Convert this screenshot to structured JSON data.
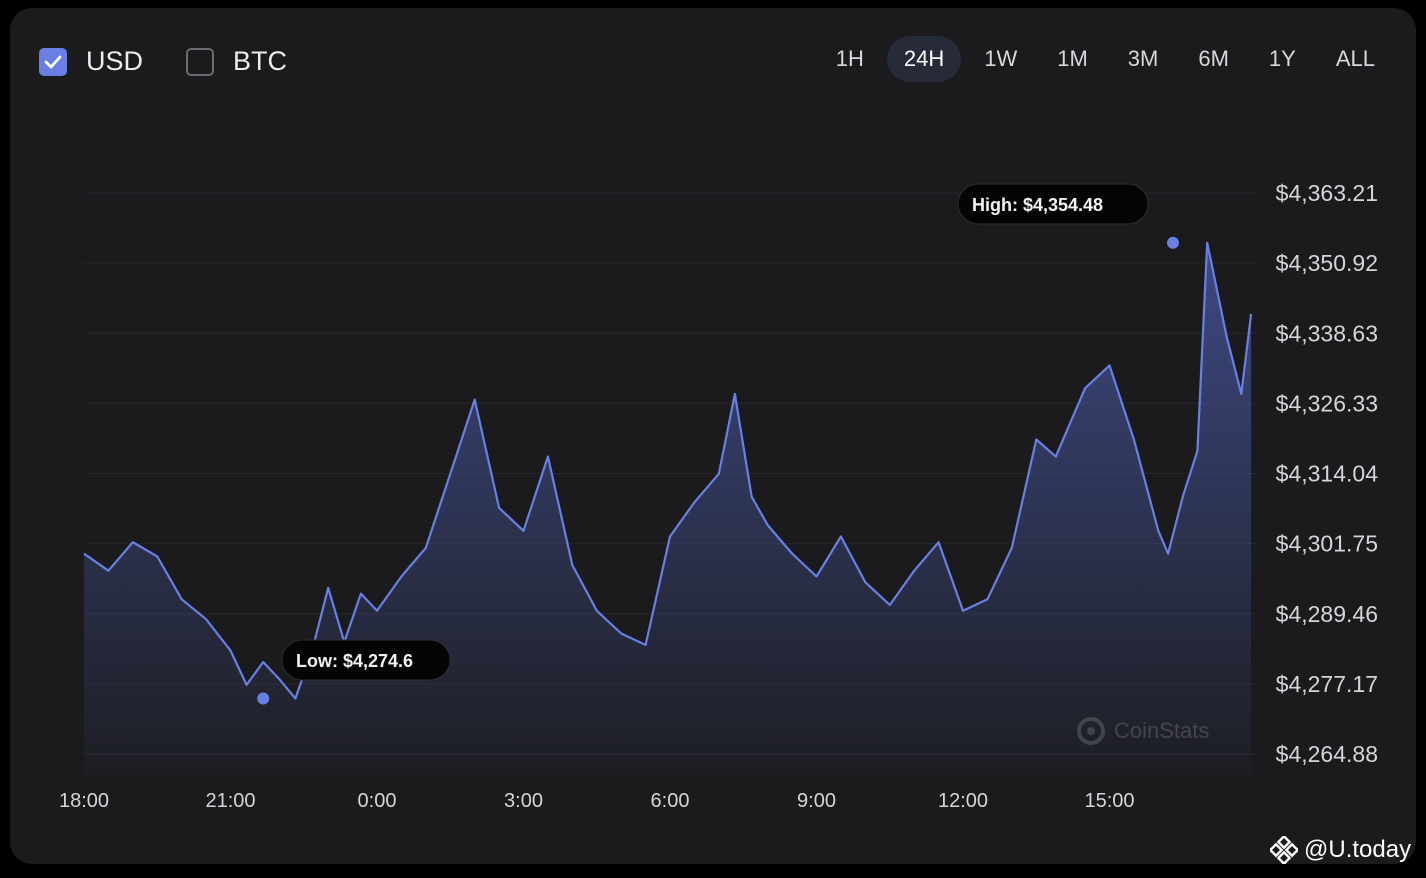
{
  "toolbar": {
    "currencies": [
      {
        "label": "USD",
        "checked": true
      },
      {
        "label": "BTC",
        "checked": false
      }
    ],
    "ranges": [
      "1H",
      "24H",
      "1W",
      "1M",
      "3M",
      "6M",
      "1Y",
      "ALL"
    ],
    "active_range": "24H"
  },
  "watermark": {
    "text": "CoinStats"
  },
  "brand": {
    "text": "@U.today"
  },
  "colors": {
    "line": "#6a7fe3",
    "card": "#1b1b1d",
    "tooltip_bg": "#050505"
  },
  "chart_data": {
    "type": "area",
    "yticks": [
      "$4,363.21",
      "$4,350.92",
      "$4,338.63",
      "$4,326.33",
      "$4,314.04",
      "$4,301.75",
      "$4,289.46",
      "$4,277.17",
      "$4,264.88"
    ],
    "ylim": [
      4264.88,
      4363.21
    ],
    "xticks": [
      "18:00",
      "21:00",
      "0:00",
      "3:00",
      "6:00",
      "9:00",
      "12:00",
      "15:00"
    ],
    "x_hours": [
      0,
      0.5,
      1,
      1.5,
      2,
      2.5,
      3,
      3.33,
      3.67,
      4,
      4.33,
      4.67,
      5,
      5.33,
      5.67,
      6,
      6.5,
      7,
      7.5,
      8,
      8.5,
      9,
      9.5,
      10,
      10.5,
      11,
      11.5,
      12,
      12.5,
      13,
      13.33,
      13.67,
      14,
      14.5,
      15,
      15.5,
      16,
      16.5,
      17,
      17.5,
      18,
      18.5,
      19,
      19.5,
      19.9,
      20.5,
      21,
      21.5,
      22,
      22.2,
      22.5,
      22.8,
      23,
      23.4,
      23.7,
      23.9
    ],
    "y": [
      4300.0,
      4297.0,
      4302.0,
      4299.5,
      4292.0,
      4288.5,
      4283.0,
      4277.0,
      4281.0,
      4278.0,
      4274.6,
      4283.0,
      4294.0,
      4284.5,
      4293.0,
      4290.0,
      4296.0,
      4301.0,
      4314.0,
      4327.0,
      4308.0,
      4304.0,
      4317.0,
      4298.0,
      4290.0,
      4286.0,
      4284.0,
      4303.0,
      4309.0,
      4314.0,
      4328.0,
      4310.0,
      4305.0,
      4300.0,
      4296.0,
      4303.0,
      4295.0,
      4291.0,
      4297.0,
      4302.0,
      4290.0,
      4292.0,
      4301.0,
      4320.0,
      4317.0,
      4329.0,
      4333.0,
      4320.0,
      4304.0,
      4300.0,
      4310.0,
      4318.0,
      4354.48,
      4338.0,
      4328.0,
      4342.0
    ],
    "low": {
      "label": "Low: $4,274.6",
      "x_hours": 3.67,
      "value": 4274.6
    },
    "high": {
      "label": "High: $4,354.48",
      "x_hours": 22.3,
      "value": 4354.48
    },
    "grid": true,
    "legend": "none"
  }
}
